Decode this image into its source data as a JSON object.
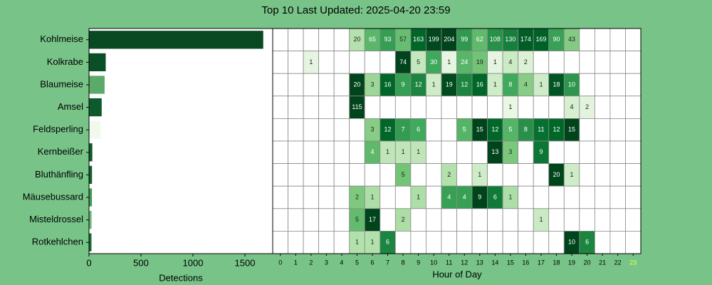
{
  "chart_data": [
    {
      "type": "barh",
      "title": "Top 10 Last Updated: 2025-04-20 23:59",
      "categories": [
        "Kohlmeise",
        "Kolkrabe",
        "Blaumeise",
        "Amsel",
        "Feldsperling",
        "Kernbeißer",
        "Bluthänfling",
        "Mäusebussard",
        "Misteldrossel",
        "Rotkehlchen"
      ],
      "values": [
        1676,
        161,
        150,
        122,
        111,
        32,
        29,
        28,
        25,
        24
      ],
      "colors": [
        "#0a4a22",
        "#0b4f26",
        "#5aaa6a",
        "#0d5a2c",
        "#f0f9ec",
        "#0e5a2c",
        "#10602f",
        "#3e9a55",
        "#6dbb78",
        "#137035"
      ],
      "xlim": [
        0,
        1767
      ],
      "xticks": [
        0,
        500,
        1000,
        1500
      ],
      "xlabel": "Detections"
    },
    {
      "type": "heatmap",
      "xlabel": "Hour of Day",
      "x": [
        0,
        1,
        2,
        3,
        4,
        5,
        6,
        7,
        8,
        9,
        10,
        11,
        12,
        13,
        14,
        15,
        16,
        17,
        18,
        19,
        20,
        21,
        22,
        23
      ],
      "highlight_hour": 23,
      "highlight_color": "#e6ff5a",
      "values": [
        [
          null,
          null,
          null,
          null,
          null,
          20,
          65,
          93,
          57,
          163,
          199,
          204,
          99,
          62,
          108,
          130,
          174,
          169,
          90,
          43,
          null,
          null,
          null,
          null
        ],
        [
          null,
          null,
          1,
          null,
          null,
          null,
          null,
          null,
          74,
          5,
          30,
          1,
          24,
          19,
          1,
          4,
          2,
          null,
          null,
          null,
          null,
          null,
          null,
          null
        ],
        [
          null,
          null,
          null,
          null,
          null,
          20,
          3,
          16,
          9,
          12,
          1,
          19,
          12,
          16,
          1,
          8,
          4,
          1,
          18,
          10,
          null,
          null,
          null,
          null
        ],
        [
          null,
          null,
          null,
          null,
          null,
          115,
          null,
          null,
          null,
          null,
          null,
          null,
          null,
          null,
          null,
          1,
          null,
          null,
          null,
          4,
          2,
          null,
          null,
          null
        ],
        [
          null,
          null,
          null,
          null,
          null,
          null,
          3,
          12,
          7,
          6,
          null,
          null,
          5,
          15,
          12,
          5,
          8,
          11,
          12,
          15,
          null,
          null,
          null,
          null
        ],
        [
          null,
          null,
          null,
          null,
          null,
          null,
          4,
          1,
          1,
          1,
          null,
          null,
          null,
          null,
          13,
          3,
          null,
          9,
          null,
          null,
          null,
          null,
          null,
          null
        ],
        [
          null,
          null,
          null,
          null,
          null,
          null,
          null,
          null,
          5,
          null,
          null,
          2,
          null,
          1,
          null,
          null,
          null,
          null,
          20,
          1,
          null,
          null,
          null,
          null
        ],
        [
          null,
          null,
          null,
          null,
          null,
          2,
          1,
          null,
          null,
          1,
          null,
          4,
          4,
          9,
          6,
          1,
          null,
          null,
          null,
          null,
          null,
          null,
          null,
          null
        ],
        [
          null,
          null,
          null,
          null,
          null,
          5,
          17,
          null,
          2,
          null,
          null,
          null,
          null,
          null,
          null,
          null,
          null,
          1,
          null,
          null,
          null,
          null,
          null,
          null
        ],
        [
          null,
          null,
          null,
          null,
          null,
          1,
          1,
          6,
          null,
          null,
          null,
          null,
          null,
          null,
          null,
          null,
          null,
          null,
          null,
          10,
          6,
          null,
          null,
          null
        ]
      ]
    }
  ]
}
